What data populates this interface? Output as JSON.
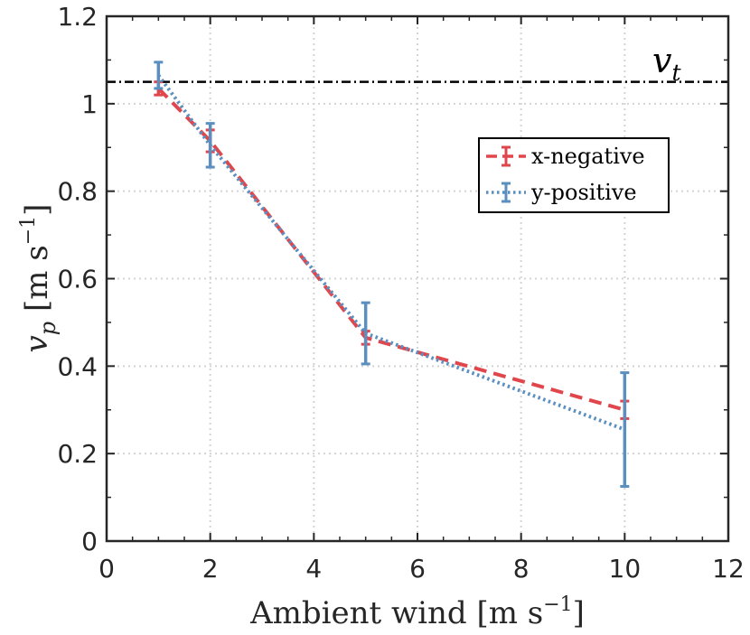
{
  "chart_data": {
    "type": "line",
    "title": "",
    "xlabel": "Ambient wind [m s",
    "xlabel_unit_sup": "−1",
    "xlabel_close": "]",
    "ylabel_var": "v",
    "ylabel_sub": "p",
    "ylabel_unit": " [m s",
    "ylabel_unit_sup": "−1",
    "ylabel_close": "]",
    "xlim": [
      0,
      12
    ],
    "ylim": [
      0,
      1.2
    ],
    "xticks": [
      0,
      2,
      4,
      6,
      8,
      10,
      12
    ],
    "yticks": [
      0,
      0.2,
      0.4,
      0.6,
      0.8,
      1,
      1.2
    ],
    "ytick_labels": [
      "0",
      "0.2",
      "0.4",
      "0.6",
      "0.8",
      "1",
      "1.2"
    ],
    "grid": true,
    "legend_position": "top-right",
    "series": [
      {
        "name": "x-negative",
        "color": "#e0474c",
        "linestyle": "dashed",
        "x": [
          1,
          2,
          5,
          10
        ],
        "y": [
          1.035,
          0.915,
          0.465,
          0.3
        ],
        "err": [
          0.015,
          0.025,
          0.015,
          0.02
        ]
      },
      {
        "name": "y-positive",
        "color": "#5a8fc0",
        "linestyle": "dotted",
        "x": [
          1,
          2,
          5,
          10
        ],
        "y": [
          1.065,
          0.905,
          0.475,
          0.255
        ],
        "err": [
          0.03,
          0.05,
          0.07,
          0.13
        ]
      }
    ],
    "reference_line": {
      "y": 1.05,
      "label_var": "v",
      "label_sub": "t",
      "color": "#000000",
      "linestyle": "dashdot"
    }
  }
}
